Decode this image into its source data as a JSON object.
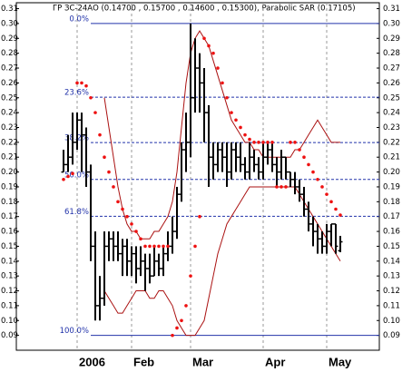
{
  "chart_data": {
    "type": "ohlc",
    "title": "ГР ЗС-24АО (0.14700 , 0.15700 , 0.14600 , 0.15300), Parabolic SAR (0.17105)",
    "categories": [
      null,
      null,
      null,
      "2006",
      null,
      null,
      null,
      null,
      null,
      null,
      null,
      null,
      null,
      null,
      null,
      "Feb",
      null,
      null,
      null,
      null,
      null,
      null,
      null,
      null,
      null,
      null,
      null,
      null,
      "Mar",
      null,
      null,
      null,
      null,
      null,
      null,
      null,
      null,
      null,
      null,
      null,
      null,
      null,
      null,
      null,
      "Apr",
      null,
      null,
      null,
      null,
      null,
      null,
      null,
      null,
      null,
      null,
      null,
      null,
      null,
      "May",
      null,
      null,
      null
    ],
    "open": [
      0.2,
      0.205,
      0.21,
      0.22,
      0.235,
      0.225,
      0.2,
      0.15,
      0.11,
      0.115,
      0.15,
      0.155,
      0.15,
      0.145,
      0.15,
      0.14,
      0.145,
      0.135,
      0.14,
      0.135,
      0.13,
      0.14,
      0.135,
      0.145,
      0.15,
      0.16,
      0.185,
      0.215,
      0.22,
      0.25,
      0.27,
      0.26,
      0.24,
      0.21,
      0.205,
      0.215,
      0.21,
      0.2,
      0.215,
      0.21,
      0.205,
      0.2,
      0.21,
      0.205,
      0.2,
      0.21,
      0.215,
      0.205,
      0.2,
      0.21,
      0.2,
      0.195,
      0.19,
      0.185,
      0.175,
      0.165,
      0.16,
      0.155,
      0.15,
      0.16,
      0.165,
      0.147
    ],
    "high": [
      0.215,
      0.225,
      0.24,
      0.24,
      0.24,
      0.23,
      0.205,
      0.16,
      0.13,
      0.16,
      0.16,
      0.16,
      0.16,
      0.155,
      0.155,
      0.15,
      0.15,
      0.15,
      0.145,
      0.145,
      0.15,
      0.145,
      0.15,
      0.16,
      0.17,
      0.19,
      0.22,
      0.24,
      0.3,
      0.29,
      0.28,
      0.27,
      0.245,
      0.22,
      0.22,
      0.22,
      0.22,
      0.22,
      0.22,
      0.22,
      0.21,
      0.22,
      0.215,
      0.21,
      0.22,
      0.22,
      0.22,
      0.21,
      0.215,
      0.21,
      0.2,
      0.2,
      0.195,
      0.19,
      0.18,
      0.17,
      0.165,
      0.16,
      0.165,
      0.165,
      0.165,
      0.157
    ],
    "low": [
      0.2,
      0.2,
      0.205,
      0.215,
      0.2,
      0.19,
      0.14,
      0.1,
      0.1,
      0.11,
      0.14,
      0.14,
      0.14,
      0.13,
      0.13,
      0.13,
      0.125,
      0.13,
      0.12,
      0.125,
      0.13,
      0.13,
      0.13,
      0.14,
      0.145,
      0.155,
      0.18,
      0.2,
      0.21,
      0.24,
      0.24,
      0.22,
      0.19,
      0.195,
      0.2,
      0.2,
      0.19,
      0.195,
      0.2,
      0.2,
      0.195,
      0.195,
      0.2,
      0.195,
      0.195,
      0.205,
      0.2,
      0.19,
      0.195,
      0.195,
      0.19,
      0.185,
      0.18,
      0.17,
      0.16,
      0.15,
      0.145,
      0.145,
      0.145,
      0.15,
      0.145,
      0.146
    ],
    "close": [
      0.205,
      0.21,
      0.22,
      0.235,
      0.225,
      0.2,
      0.15,
      0.11,
      0.115,
      0.15,
      0.155,
      0.15,
      0.145,
      0.15,
      0.14,
      0.145,
      0.135,
      0.14,
      0.135,
      0.13,
      0.14,
      0.135,
      0.145,
      0.15,
      0.16,
      0.185,
      0.215,
      0.22,
      0.25,
      0.27,
      0.26,
      0.24,
      0.21,
      0.205,
      0.215,
      0.21,
      0.2,
      0.215,
      0.21,
      0.205,
      0.2,
      0.21,
      0.205,
      0.2,
      0.21,
      0.215,
      0.205,
      0.2,
      0.21,
      0.2,
      0.195,
      0.19,
      0.185,
      0.175,
      0.165,
      0.16,
      0.155,
      0.15,
      0.16,
      0.165,
      0.15,
      0.153
    ],
    "bar_color": "#000000",
    "sar": {
      "color": "#ee1111",
      "values": [
        0.195,
        0.197,
        0.199,
        0.26,
        0.26,
        0.258,
        0.25,
        0.24,
        0.225,
        0.21,
        0.2,
        0.19,
        0.18,
        0.175,
        0.17,
        0.165,
        0.16,
        0.155,
        0.15,
        0.15,
        0.15,
        0.15,
        0.15,
        0.15,
        0.09,
        0.095,
        0.1,
        0.11,
        0.13,
        0.15,
        0.17,
        0.29,
        0.285,
        0.28,
        0.27,
        0.26,
        0.25,
        0.24,
        0.235,
        0.23,
        0.225,
        0.222,
        0.22,
        0.22,
        0.22,
        0.22,
        0.22,
        0.19,
        0.19,
        0.19,
        0.22,
        0.22,
        0.215,
        0.21,
        0.205,
        0.2,
        0.195,
        0.19,
        0.185,
        0.18,
        0.175,
        0.171
      ]
    },
    "bands": {
      "color": "#aa1111",
      "upper": [
        null,
        null,
        null,
        null,
        null,
        null,
        null,
        null,
        null,
        0.25,
        0.23,
        0.21,
        0.19,
        0.175,
        0.165,
        0.16,
        0.16,
        0.155,
        0.155,
        0.155,
        0.16,
        0.16,
        0.165,
        0.17,
        0.18,
        0.2,
        0.23,
        0.26,
        0.28,
        0.29,
        0.295,
        0.29,
        0.285,
        0.275,
        0.265,
        0.255,
        0.245,
        0.235,
        0.23,
        0.225,
        0.22,
        0.22,
        0.215,
        0.215,
        0.21,
        0.21,
        0.21,
        0.21,
        0.21,
        0.21,
        0.21,
        0.215,
        0.215,
        0.22,
        0.225,
        0.23,
        0.235,
        0.23,
        0.225,
        0.22,
        0.22,
        0.22
      ],
      "lower": [
        null,
        null,
        null,
        null,
        null,
        null,
        null,
        null,
        null,
        0.12,
        0.115,
        0.11,
        0.105,
        0.105,
        0.11,
        0.115,
        0.12,
        0.12,
        0.12,
        0.115,
        0.115,
        0.12,
        0.12,
        0.115,
        0.11,
        0.1,
        0.095,
        0.09,
        0.09,
        0.09,
        0.095,
        0.1,
        0.115,
        0.13,
        0.145,
        0.155,
        0.165,
        0.17,
        0.175,
        0.18,
        0.185,
        0.19,
        0.19,
        0.19,
        0.19,
        0.19,
        0.19,
        0.19,
        0.19,
        0.19,
        0.19,
        0.19,
        0.185,
        0.18,
        0.175,
        0.17,
        0.165,
        0.16,
        0.155,
        0.15,
        0.145,
        0.14
      ]
    },
    "fib_color": "#2233aa",
    "levels": [
      {
        "label": "0.0%",
        "value": 0.3
      },
      {
        "label": "23.6%",
        "value": 0.2504
      },
      {
        "label": "38.2%",
        "value": 0.2198
      },
      {
        "label": "50.0%",
        "value": 0.195
      },
      {
        "label": "61.8%",
        "value": 0.1702
      },
      {
        "label": "100.0%",
        "value": 0.09
      }
    ],
    "ylim": [
      0.08,
      0.314
    ],
    "yticks": [
      0.09,
      {
        "value": 0.1,
        "label": "0.10"
      },
      0.11,
      0.12,
      0.13,
      0.14,
      0.15,
      0.16,
      0.17,
      0.18,
      0.19,
      {
        "value": 0.2,
        "label": "0.20"
      },
      0.21,
      0.22,
      0.23,
      0.24,
      0.25,
      0.26,
      0.27,
      0.28,
      0.29,
      {
        "value": 0.3,
        "label": "0.30"
      },
      0.31
    ],
    "grid": true
  }
}
